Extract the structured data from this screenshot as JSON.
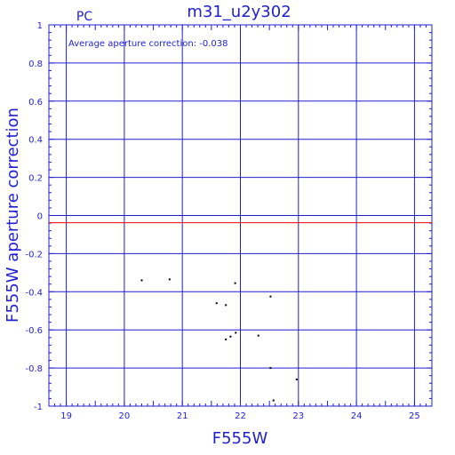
{
  "chart_data": {
    "type": "scatter",
    "title": "m31_u2y302",
    "corner_label": "PC",
    "annotation": "Average aperture correction: -0.038",
    "xlabel": "F555W",
    "ylabel": "F555W aperture correction",
    "xlim": [
      18.7,
      25.3
    ],
    "ylim": [
      -1,
      1
    ],
    "x_ticks": [
      19,
      20,
      21,
      22,
      23,
      24,
      25
    ],
    "x_tick_labels": [
      "19",
      "20",
      "21",
      "22",
      "23",
      "24",
      "25"
    ],
    "y_ticks": [
      1,
      0.8,
      0.6,
      0.4,
      0.2,
      0,
      -0.2,
      -0.4,
      -0.6,
      -0.8,
      -1
    ],
    "y_tick_labels": [
      "1",
      "0.8",
      "0.6",
      "0.4",
      "0.2",
      "0",
      "-0.2",
      "-0.4",
      "-0.6",
      "-0.8",
      "-1"
    ],
    "grid": true,
    "reference_line": {
      "y": -0.038,
      "color": "#ff0000"
    },
    "colors": {
      "axis": "#1f1fd0",
      "points": "#000000",
      "background": "#ffffff"
    },
    "points": [
      {
        "x": 20.3,
        "y": -0.34
      },
      {
        "x": 20.78,
        "y": -0.335
      },
      {
        "x": 21.59,
        "y": -0.46
      },
      {
        "x": 21.75,
        "y": -0.47
      },
      {
        "x": 21.75,
        "y": -0.65
      },
      {
        "x": 21.83,
        "y": -0.635
      },
      {
        "x": 21.91,
        "y": -0.355
      },
      {
        "x": 21.92,
        "y": -0.615
      },
      {
        "x": 22.31,
        "y": -0.63
      },
      {
        "x": 22.52,
        "y": -0.425
      },
      {
        "x": 22.52,
        "y": -0.8
      },
      {
        "x": 22.57,
        "y": -0.97
      },
      {
        "x": 22.97,
        "y": -0.86
      }
    ]
  }
}
